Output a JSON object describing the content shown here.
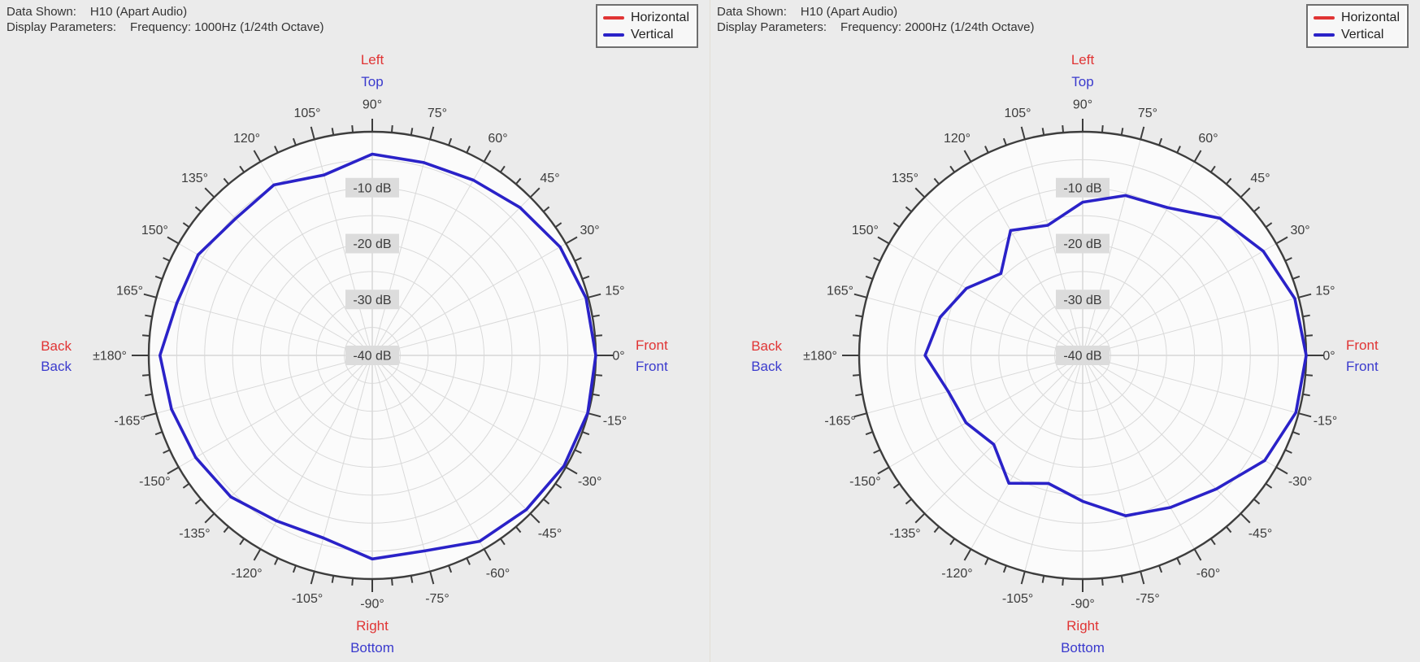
{
  "colors": {
    "background": "#ebebeb",
    "plot_fill": "#fbfbfb",
    "grid": "#d9d9d9",
    "grid_axis": "#c6c6c6",
    "outline": "#3d3d3d",
    "text": "#333333",
    "red": "#e03434",
    "blue": "#2a22c8",
    "blue_text": "#3a3acd",
    "db_label_bg": "#dcdcdc"
  },
  "panels": [
    {
      "header": {
        "data_shown_label": "Data Shown:",
        "data_shown_value": "H10 (Apart Audio)",
        "display_parameters_label": "Display Parameters:",
        "display_parameters_value": "Frequency: 1000Hz (1/24th Octave)"
      },
      "legend": {
        "items": [
          {
            "label": "Horizontal",
            "color": "#e03434"
          },
          {
            "label": "Vertical",
            "color": "#2a22c8"
          }
        ]
      }
    },
    {
      "header": {
        "data_shown_label": "Data Shown:",
        "data_shown_value": "H10 (Apart Audio)",
        "display_parameters_label": "Display Parameters:",
        "display_parameters_value": "Frequency: 2000Hz (1/24th Octave)"
      },
      "legend": {
        "items": [
          {
            "label": "Horizontal",
            "color": "#e03434"
          },
          {
            "label": "Vertical",
            "color": "#2a22c8"
          }
        ]
      }
    }
  ],
  "chart_data": [
    {
      "type": "line",
      "subtype": "polar",
      "title": "H10 (Apart Audio) directivity at 1000Hz (1/24th Octave)",
      "angle_unit": "deg",
      "angles": [
        0,
        15,
        30,
        45,
        60,
        75,
        90,
        105,
        120,
        135,
        150,
        165,
        180,
        195,
        210,
        225,
        240,
        255,
        270,
        285,
        300,
        315,
        330,
        345
      ],
      "angle_labels": [
        "0°",
        "15°",
        "30°",
        "45°",
        "60°",
        "75°",
        "90°",
        "105°",
        "120°",
        "135°",
        "150°",
        "165°",
        "±180°",
        "-165°",
        "-150°",
        "-135°",
        "-120°",
        "-105°",
        "-90°",
        "-75°",
        "-60°",
        "-45°",
        "-30°",
        "-15°"
      ],
      "radial_axis": {
        "unit": "dB",
        "outer": 0,
        "center": -40,
        "ring_step": 5,
        "labels": [
          "-10 dB",
          "-20 dB",
          "-30 dB",
          "-40 dB"
        ]
      },
      "series": [
        {
          "name": "Horizontal",
          "color": "#e03434",
          "values": []
        },
        {
          "name": "Vertical",
          "color": "#2a22c8",
          "values": [
            0,
            -0.4,
            -1.2,
            -2.6,
            -3.8,
            -4.3,
            -4.0,
            -6.6,
            -4.8,
            -5.4,
            -4.0,
            -3.8,
            -2.0,
            -2.8,
            -3.5,
            -4.2,
            -5.8,
            -6.2,
            -3.6,
            -3.8,
            -1.6,
            -1.0,
            -0.4,
            -0.1
          ]
        }
      ],
      "direction_labels": {
        "top": {
          "horizontal": "Left",
          "vertical": "Top"
        },
        "right": {
          "horizontal": "Front",
          "vertical": "Front"
        },
        "bottom": {
          "horizontal": "Right",
          "vertical": "Bottom"
        },
        "left": {
          "horizontal": "Back",
          "vertical": "Back"
        }
      },
      "legend_position": "top-right",
      "grid": true
    },
    {
      "type": "line",
      "subtype": "polar",
      "title": "H10 (Apart Audio) directivity at 2000Hz (1/24th Octave)",
      "angle_unit": "deg",
      "angles": [
        0,
        15,
        30,
        45,
        60,
        75,
        90,
        105,
        120,
        135,
        150,
        165,
        180,
        195,
        210,
        225,
        240,
        255,
        270,
        285,
        300,
        315,
        330,
        345
      ],
      "angle_labels": [
        "0°",
        "15°",
        "30°",
        "45°",
        "60°",
        "75°",
        "90°",
        "105°",
        "120°",
        "135°",
        "150°",
        "165°",
        "±180°",
        "-165°",
        "-150°",
        "-135°",
        "-120°",
        "-105°",
        "-90°",
        "-75°",
        "-60°",
        "-45°",
        "-30°",
        "-15°"
      ],
      "radial_axis": {
        "unit": "dB",
        "outer": 0,
        "center": -40,
        "ring_step": 5,
        "labels": [
          "-10 dB",
          "-20 dB",
          "-30 dB",
          "-40 dB"
        ]
      },
      "series": [
        {
          "name": "Horizontal",
          "color": "#e03434",
          "values": []
        },
        {
          "name": "Vertical",
          "color": "#2a22c8",
          "values": [
            0,
            -0.7,
            -2.7,
            -5.3,
            -9.5,
            -10.4,
            -12.6,
            -15.9,
            -14.2,
            -19.3,
            -16.0,
            -13.6,
            -11.8,
            -15.1,
            -15.9,
            -17.5,
            -13.6,
            -16.3,
            -13.9,
            -10.3,
            -8.6,
            -6.2,
            -2.4,
            -0.5
          ]
        }
      ],
      "direction_labels": {
        "top": {
          "horizontal": "Left",
          "vertical": "Top"
        },
        "right": {
          "horizontal": "Front",
          "vertical": "Front"
        },
        "bottom": {
          "horizontal": "Right",
          "vertical": "Bottom"
        },
        "left": {
          "horizontal": "Back",
          "vertical": "Back"
        }
      },
      "legend_position": "top-right",
      "grid": true
    }
  ]
}
